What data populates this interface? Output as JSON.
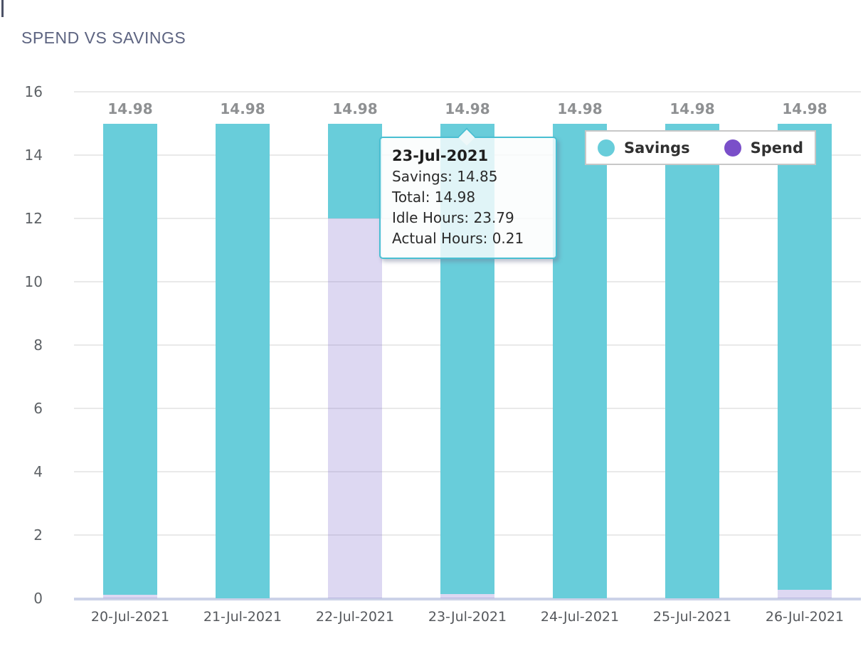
{
  "page": {
    "title": "SPEND VS SAVINGS"
  },
  "chart_data": {
    "type": "bar",
    "stacked": true,
    "title": "SPEND VS SAVINGS",
    "categories": [
      "20-Jul-2021",
      "21-Jul-2021",
      "22-Jul-2021",
      "23-Jul-2021",
      "24-Jul-2021",
      "25-Jul-2021",
      "26-Jul-2021"
    ],
    "series": [
      {
        "name": "Savings",
        "color": "#68CDDA",
        "values": [
          14.86,
          14.98,
          2.98,
          14.85,
          14.98,
          14.98,
          14.71
        ]
      },
      {
        "name": "Spend",
        "color": "#7A4FC9",
        "bar_fill": "rgba(134,115,209,0.28)",
        "values": [
          0.12,
          0,
          12,
          0.13,
          0,
          0,
          0.27
        ]
      }
    ],
    "totals_labels": [
      "14.98",
      "14.98",
      "14.98",
      "14.98",
      "14.98",
      "14.98",
      "14.98"
    ],
    "ylabel": "",
    "xlabel": "",
    "ylim": [
      0,
      16
    ],
    "y_ticks": [
      0,
      2,
      4,
      6,
      8,
      10,
      12,
      14,
      16
    ],
    "grid": true,
    "legend_position": "top-right"
  },
  "legend": {
    "items": [
      {
        "label": "Savings",
        "color": "#68CDDA"
      },
      {
        "label": "Spend",
        "color": "#7A4FC9"
      }
    ]
  },
  "tooltip": {
    "title": "23-Jul-2021",
    "lines": [
      "Savings: 14.85",
      "Total: 14.98",
      "Idle Hours: 23.79",
      "Actual Hours: 0.21"
    ]
  }
}
